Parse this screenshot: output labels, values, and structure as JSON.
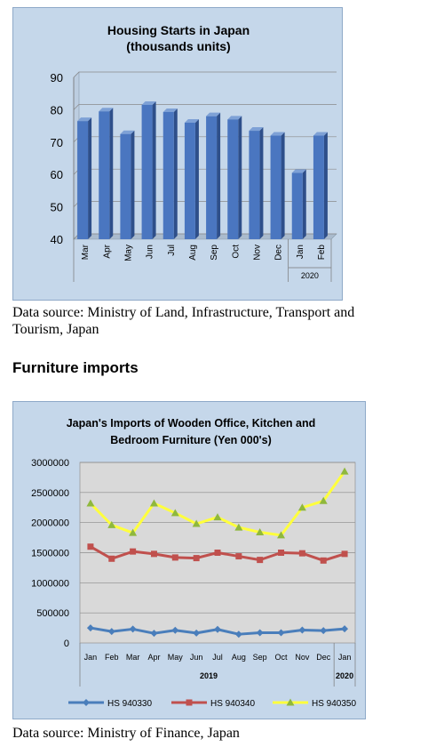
{
  "chart_data": [
    {
      "type": "bar",
      "title": "Housing Starts in Japan",
      "subtitle": "(thousands units)",
      "categories": [
        "Mar",
        "Apr",
        "May",
        "Jun",
        "Jul",
        "Aug",
        "Sep",
        "Oct",
        "Nov",
        "Dec",
        "Jan",
        "Feb"
      ],
      "values": [
        76.5,
        79.5,
        72.5,
        81.5,
        79.3,
        76,
        78,
        77,
        73.5,
        72,
        60.5,
        72
      ],
      "ylim": [
        40,
        90
      ],
      "yticks": [
        40,
        50,
        60,
        70,
        80,
        90
      ],
      "group_label": "2020",
      "gridlines": true,
      "color": "#4a76c0"
    },
    {
      "type": "line",
      "title_line1": "Japan's Imports of  Wooden  Office, Kitchen and",
      "title_line2": "Bedroom Furniture (Yen 000's)",
      "categories": [
        "Jan",
        "Feb",
        "Mar",
        "Apr",
        "May",
        "Jun",
        "Jul",
        "Aug",
        "Sep",
        "Oct",
        "Nov",
        "Dec",
        "Jan"
      ],
      "group_labels": [
        "2019",
        "2020"
      ],
      "ylim": [
        0,
        3000000
      ],
      "yticks": [
        0,
        500000,
        1000000,
        1500000,
        2000000,
        2500000,
        3000000
      ],
      "gridlines": true,
      "legend_position": "bottom",
      "series": [
        {
          "name": "HS 940330",
          "color": "#4a7ebb",
          "values": [
            250000,
            190000,
            230000,
            160000,
            210000,
            165000,
            225000,
            145000,
            170000,
            170000,
            215000,
            205000,
            235000
          ]
        },
        {
          "name": "HS 940340",
          "color": "#c0504d",
          "values": [
            1600000,
            1400000,
            1520000,
            1480000,
            1420000,
            1410000,
            1500000,
            1440000,
            1380000,
            1500000,
            1490000,
            1370000,
            1480000
          ]
        },
        {
          "name": "HS 940350",
          "color": "#ffff3c",
          "values": [
            2320000,
            1960000,
            1830000,
            2320000,
            2160000,
            1980000,
            2090000,
            1920000,
            1840000,
            1790000,
            2250000,
            2360000,
            2850000
          ]
        }
      ]
    }
  ],
  "notes": {
    "source1_line1": "Data source: Ministry of Land, Infrastructure, Transport and",
    "source1_line2": "Tourism, Japan",
    "heading": "Furniture imports",
    "source2": "Data source: Ministry of Finance, Japan"
  }
}
